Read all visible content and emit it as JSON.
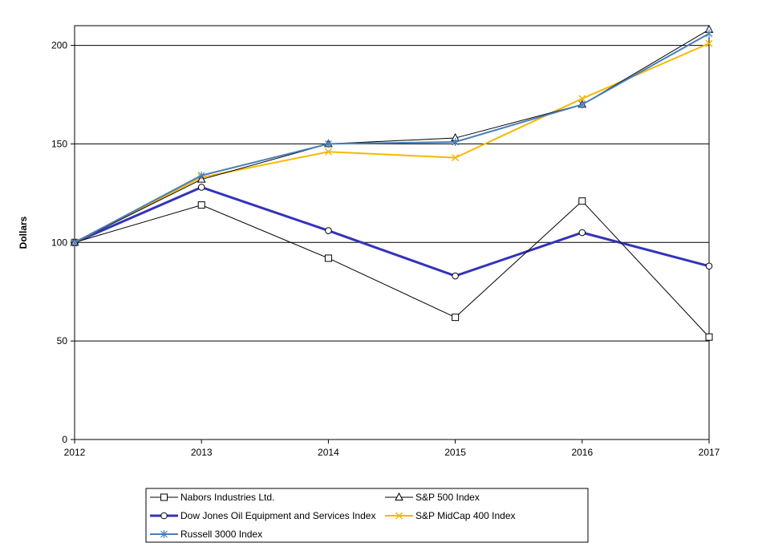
{
  "chart_data": {
    "type": "line",
    "title": "",
    "xlabel": "",
    "ylabel": "Dollars",
    "x": [
      "2012",
      "2013",
      "2014",
      "2015",
      "2016",
      "2017"
    ],
    "ylim": [
      0,
      210
    ],
    "yticks": [
      0,
      50,
      100,
      150,
      200
    ],
    "grid": "horizontal",
    "legend_position": "bottom",
    "series": [
      {
        "name": "Nabors Industries Ltd.",
        "values": [
          100,
          119,
          92,
          62,
          121,
          52
        ],
        "color": "#000000",
        "marker": "square"
      },
      {
        "name": "S&P 500 Index",
        "values": [
          100,
          132,
          150,
          153,
          170,
          208
        ],
        "color": "#000000",
        "marker": "triangle"
      },
      {
        "name": "Dow Jones Oil Equipment and Services Index",
        "values": [
          100,
          128,
          106,
          83,
          105,
          88
        ],
        "color": "#3333bb",
        "marker": "circle"
      },
      {
        "name": "S&P MidCap 400 Index",
        "values": [
          100,
          133,
          146,
          143,
          173,
          201
        ],
        "color": "#f5b800",
        "marker": "x"
      },
      {
        "name": "Russell 3000 Index",
        "values": [
          100,
          134,
          150,
          151,
          170,
          206
        ],
        "color": "#4a7ebb",
        "marker": "asterisk"
      }
    ]
  }
}
